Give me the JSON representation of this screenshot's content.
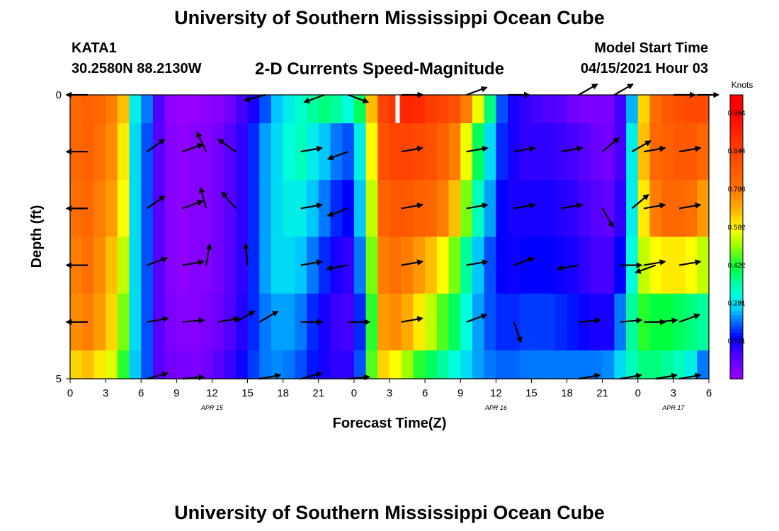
{
  "header": {
    "title": "University of Southern Mississippi Ocean Cube",
    "station": "KATA1",
    "coords": "30.2580N  88.2130W",
    "subtitle": "2-D Currents Speed-Magnitude",
    "model_label": "Model Start Time",
    "model_time": "04/15/2021 Hour 03"
  },
  "footer": {
    "title": "University of Southern Mississippi Ocean Cube"
  },
  "chart_data": {
    "type": "heatmap",
    "title": "2-D Currents Speed-Magnitude",
    "xlabel": "Forecast Time(Z)",
    "ylabel": "Depth (ft)",
    "x_start_hour": 0,
    "x_range_hours": [
      0,
      54
    ],
    "x_ticks": [
      "0",
      "3",
      "6",
      "9",
      "12",
      "15",
      "18",
      "21",
      "0",
      "3",
      "6",
      "9",
      "12",
      "15",
      "18",
      "21",
      "0",
      "3",
      "6"
    ],
    "date_labels": [
      {
        "text": "APR 15",
        "hour": 12
      },
      {
        "text": "APR 16",
        "hour": 36
      },
      {
        "text": "APR 17",
        "hour": 51
      }
    ],
    "y_range_ft": [
      0,
      5
    ],
    "y_ticks": [
      "0",
      "5"
    ],
    "y_minor_ticks": [
      1,
      2,
      3,
      4
    ],
    "colorbar": {
      "label": "Knots",
      "range": [
        0.0,
        1.05
      ],
      "ticks": [
        "0.984",
        "0.844",
        "0.703",
        "0.562",
        "0.422",
        "0.281",
        "0.141"
      ],
      "tick_values": [
        0.984,
        0.844,
        0.703,
        0.562,
        0.422,
        0.281,
        0.141
      ]
    },
    "grid": false,
    "speed_columns_hours": [
      0,
      1,
      2,
      3,
      4,
      5,
      6,
      7,
      8,
      9,
      10,
      11,
      12,
      13,
      14,
      15,
      16,
      17,
      18,
      19,
      20,
      21,
      22,
      23,
      24,
      25,
      26,
      27,
      28,
      29,
      30,
      31,
      32,
      33,
      34,
      35,
      36,
      37,
      38,
      39,
      40,
      41,
      42,
      43,
      44,
      45,
      46,
      47,
      48,
      49,
      50,
      51,
      52,
      53
    ],
    "speed_rows_depth_ft": [
      "0-0.5",
      "0.5-1.5",
      "1.5-2.5",
      "2.5-3.5",
      "3.5-4.5",
      "4.5-5"
    ],
    "speed_knots": [
      [
        0.74,
        0.76,
        0.74,
        0.7,
        0.62,
        0.3,
        0.22,
        0.09,
        0.02,
        0.01,
        0.01,
        0.02,
        0.03,
        0.05,
        0.1,
        0.14,
        0.2,
        0.26,
        0.3,
        0.33,
        0.36,
        0.38,
        0.36,
        0.32,
        0.4,
        0.62,
        0.84,
        0.88,
        0.92,
        0.9,
        0.86,
        0.84,
        0.8,
        0.7,
        0.55,
        0.38,
        0.2,
        0.14,
        0.12,
        0.1,
        0.09,
        0.08,
        0.05,
        0.04,
        0.04,
        0.04,
        0.1,
        0.25,
        0.6,
        0.72,
        0.78,
        0.8,
        0.82,
        0.82
      ],
      [
        0.74,
        0.76,
        0.72,
        0.68,
        0.58,
        0.28,
        0.2,
        0.08,
        0.03,
        0.02,
        0.03,
        0.03,
        0.05,
        0.08,
        0.12,
        0.18,
        0.24,
        0.28,
        0.32,
        0.34,
        0.3,
        0.26,
        0.22,
        0.2,
        0.3,
        0.56,
        0.8,
        0.84,
        0.84,
        0.82,
        0.8,
        0.76,
        0.7,
        0.55,
        0.4,
        0.28,
        0.18,
        0.14,
        0.12,
        0.12,
        0.12,
        0.11,
        0.1,
        0.08,
        0.06,
        0.05,
        0.1,
        0.3,
        0.62,
        0.74,
        0.76,
        0.78,
        0.78,
        0.74
      ],
      [
        0.72,
        0.74,
        0.7,
        0.66,
        0.56,
        0.28,
        0.2,
        0.08,
        0.03,
        0.02,
        0.03,
        0.03,
        0.05,
        0.08,
        0.12,
        0.18,
        0.24,
        0.28,
        0.3,
        0.3,
        0.26,
        0.22,
        0.18,
        0.16,
        0.26,
        0.52,
        0.76,
        0.78,
        0.78,
        0.76,
        0.74,
        0.7,
        0.62,
        0.48,
        0.34,
        0.24,
        0.16,
        0.14,
        0.14,
        0.14,
        0.14,
        0.13,
        0.12,
        0.1,
        0.08,
        0.07,
        0.12,
        0.3,
        0.58,
        0.7,
        0.74,
        0.74,
        0.72,
        0.66
      ],
      [
        0.7,
        0.72,
        0.68,
        0.62,
        0.52,
        0.28,
        0.2,
        0.08,
        0.03,
        0.02,
        0.03,
        0.03,
        0.05,
        0.08,
        0.12,
        0.18,
        0.24,
        0.28,
        0.28,
        0.26,
        0.22,
        0.18,
        0.14,
        0.12,
        0.22,
        0.48,
        0.7,
        0.72,
        0.7,
        0.66,
        0.62,
        0.56,
        0.48,
        0.36,
        0.26,
        0.2,
        0.16,
        0.15,
        0.16,
        0.16,
        0.16,
        0.15,
        0.14,
        0.12,
        0.1,
        0.1,
        0.16,
        0.32,
        0.52,
        0.56,
        0.58,
        0.58,
        0.56,
        0.52
      ],
      [
        0.68,
        0.7,
        0.66,
        0.6,
        0.48,
        0.28,
        0.2,
        0.08,
        0.04,
        0.03,
        0.03,
        0.04,
        0.06,
        0.09,
        0.13,
        0.18,
        0.22,
        0.24,
        0.24,
        0.22,
        0.18,
        0.14,
        0.11,
        0.1,
        0.18,
        0.44,
        0.66,
        0.68,
        0.64,
        0.58,
        0.52,
        0.46,
        0.4,
        0.32,
        0.24,
        0.2,
        0.18,
        0.18,
        0.19,
        0.19,
        0.19,
        0.18,
        0.17,
        0.15,
        0.14,
        0.14,
        0.22,
        0.36,
        0.44,
        0.42,
        0.42,
        0.4,
        0.38,
        0.36
      ],
      [
        0.6,
        0.62,
        0.58,
        0.54,
        0.44,
        0.26,
        0.2,
        0.08,
        0.05,
        0.04,
        0.04,
        0.05,
        0.08,
        0.11,
        0.15,
        0.19,
        0.22,
        0.23,
        0.22,
        0.2,
        0.17,
        0.14,
        0.12,
        0.12,
        0.2,
        0.46,
        0.6,
        0.56,
        0.5,
        0.44,
        0.4,
        0.36,
        0.32,
        0.28,
        0.24,
        0.22,
        0.21,
        0.21,
        0.22,
        0.22,
        0.22,
        0.22,
        0.22,
        0.22,
        0.22,
        0.23,
        0.28,
        0.34,
        0.38,
        0.38,
        0.36,
        0.34,
        0.3,
        0.22
      ]
    ],
    "vectors_note": "current direction arrows at depths 0,1,2,3,4,5 ft",
    "vector_angles_deg": [
      [
        180,
        null,
        null,
        null,
        null,
        null,
        null,
        null,
        200,
        null,
        null,
        20,
        30,
        null,
        null,
        20,
        200,
        null,
        350,
        null,
        null,
        200,
        null,
        30
      ],
      [
        180,
        null,
        null,
        null,
        null,
        null,
        null,
        null,
        20,
        30,
        60,
        null,
        null,
        null,
        null,
        null,
        200,
        null,
        null,
        null,
        null,
        null,
        null,
        null
      ],
      [
        180,
        null,
        null,
        null,
        null,
        null,
        null,
        null,
        30,
        30,
        60,
        null,
        null,
        null,
        null,
        null,
        200,
        null,
        null,
        null,
        null,
        null,
        null,
        null
      ],
      [
        180,
        null,
        null,
        null,
        null,
        null,
        null,
        null,
        30,
        20,
        85,
        null,
        null,
        null,
        null,
        null,
        200,
        null,
        null,
        null,
        null,
        null,
        null,
        null
      ],
      [
        180,
        null,
        null,
        null,
        null,
        null,
        null,
        null,
        20,
        10,
        5,
        null,
        null,
        null,
        null,
        null,
        5,
        null,
        null,
        null,
        null,
        null,
        null,
        null
      ],
      [
        null,
        null,
        null,
        null,
        null,
        null,
        null,
        null,
        15,
        5,
        null,
        null,
        null,
        null,
        null,
        null,
        null,
        null,
        null,
        null,
        null,
        null,
        null,
        null
      ]
    ]
  }
}
